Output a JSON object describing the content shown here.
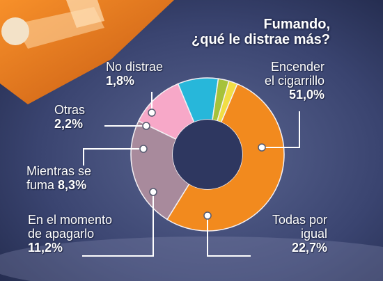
{
  "title": {
    "line1": "Fumando,",
    "line2": "¿qué le distrae más?"
  },
  "colors": {
    "background": "#3a4470",
    "hole": "#2e3760",
    "accent": "#f28a1e"
  },
  "chart_data": {
    "type": "pie",
    "variant": "donut",
    "title": "Fumando, ¿qué le distrae más?",
    "slices": [
      {
        "label": "Encender el cigarrillo",
        "value": 51.0,
        "display": "51,0%",
        "color": "#f28a1e"
      },
      {
        "label": "Todas por igual",
        "value": 22.7,
        "display": "22,7%",
        "color": "#a88a9c"
      },
      {
        "label": "En el momento de apagarlo",
        "value": 11.2,
        "display": "11,2%",
        "color": "#f7a8c8"
      },
      {
        "label": "Mientras se fuma",
        "value": 8.3,
        "display": "8,3%",
        "color": "#27b7da"
      },
      {
        "label": "Otras",
        "value": 2.2,
        "display": "2,2%",
        "color": "#a6c23a"
      },
      {
        "label": "No distrae",
        "value": 1.8,
        "display": "1,8%",
        "color": "#f1de45"
      }
    ]
  },
  "labels": {
    "encender": {
      "line1": "Encender",
      "line2": "el cigarrillo",
      "pct": "51,0%"
    },
    "todas": {
      "line1": "Todas por",
      "line2": "igual",
      "pct": "22,7%"
    },
    "apagar": {
      "line1": "En el momento",
      "line2": "de apagarlo",
      "pct": "11,2%"
    },
    "mientras": {
      "line1": "Mientras se",
      "line2": "fuma",
      "pct": "8,3%"
    },
    "otras": {
      "line1": "Otras",
      "pct": "2,2%"
    },
    "nodistrae": {
      "line1": "No distrae",
      "pct": "1,8%"
    }
  }
}
